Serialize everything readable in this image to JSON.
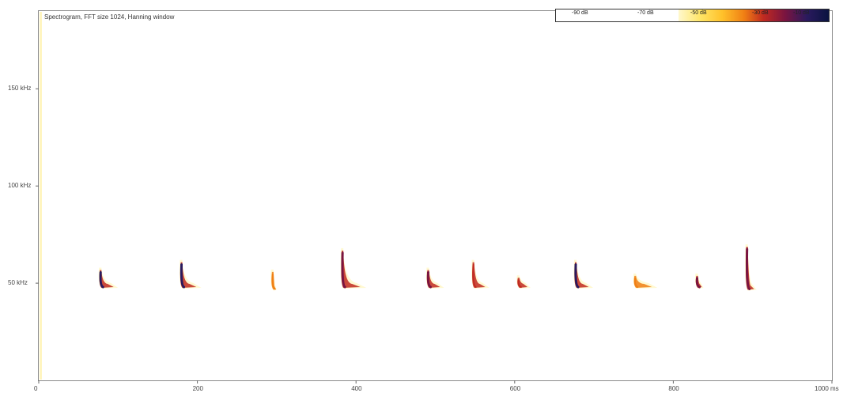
{
  "colors": {
    "background": "#ffffff",
    "frame": "#8a8a8a",
    "palette": [
      "#fff8cc",
      "#ffe566",
      "#ffc12a",
      "#f07f14",
      "#c12a20",
      "#7a1440",
      "#2a1a5e",
      "#0a1440"
    ]
  },
  "chart_data": {
    "type": "heatmap",
    "title": "Spectrogram, FFT size 1024, Hanning window",
    "xlabel": "",
    "ylabel": "",
    "x_unit": "ms",
    "xlim": [
      0,
      1000
    ],
    "ylim": [
      0,
      190
    ],
    "x_ticks": [
      {
        "value": 0,
        "label": "0"
      },
      {
        "value": 200,
        "label": "200"
      },
      {
        "value": 400,
        "label": "400"
      },
      {
        "value": 600,
        "label": "600"
      },
      {
        "value": 800,
        "label": "800"
      },
      {
        "value": 1000,
        "label": "1000 ms"
      }
    ],
    "y_ticks": [
      {
        "value": 50,
        "label": "50 kHz"
      },
      {
        "value": 100,
        "label": "100 kHz"
      },
      {
        "value": 150,
        "label": "150 kHz"
      }
    ],
    "colorbar": {
      "unit": "dB",
      "range": [
        -90,
        -10
      ],
      "labels": [
        {
          "value": -90,
          "label": "-90 dB"
        },
        {
          "value": -70,
          "label": "-70 dB"
        },
        {
          "value": -50,
          "label": "-50 dB"
        },
        {
          "value": -30,
          "label": "-30 dB"
        },
        {
          "value": -10,
          "label": "-10 dB"
        }
      ]
    },
    "calls": [
      {
        "time_ms": 78,
        "f_start_khz": 58,
        "f_end_khz": 48,
        "peak_db": -25,
        "tail_ms": 22
      },
      {
        "time_ms": 180,
        "f_start_khz": 62,
        "f_end_khz": 48,
        "peak_db": -20,
        "tail_ms": 25
      },
      {
        "time_ms": 295,
        "f_start_khz": 57,
        "f_end_khz": 47,
        "peak_db": -60,
        "tail_ms": 5
      },
      {
        "time_ms": 383,
        "f_start_khz": 68,
        "f_end_khz": 48,
        "peak_db": -28,
        "tail_ms": 30
      },
      {
        "time_ms": 491,
        "f_start_khz": 58,
        "f_end_khz": 48,
        "peak_db": -30,
        "tail_ms": 20
      },
      {
        "time_ms": 548,
        "f_start_khz": 62,
        "f_end_khz": 48,
        "peak_db": -45,
        "tail_ms": 20
      },
      {
        "time_ms": 605,
        "f_start_khz": 54,
        "f_end_khz": 48,
        "peak_db": -40,
        "tail_ms": 15
      },
      {
        "time_ms": 677,
        "f_start_khz": 62,
        "f_end_khz": 48,
        "peak_db": -22,
        "tail_ms": 22
      },
      {
        "time_ms": 752,
        "f_start_khz": 55,
        "f_end_khz": 48,
        "peak_db": -55,
        "tail_ms": 28
      },
      {
        "time_ms": 830,
        "f_start_khz": 55,
        "f_end_khz": 48,
        "peak_db": -32,
        "tail_ms": 8
      },
      {
        "time_ms": 893,
        "f_start_khz": 70,
        "f_end_khz": 47,
        "peak_db": -28,
        "tail_ms": 12
      }
    ]
  }
}
